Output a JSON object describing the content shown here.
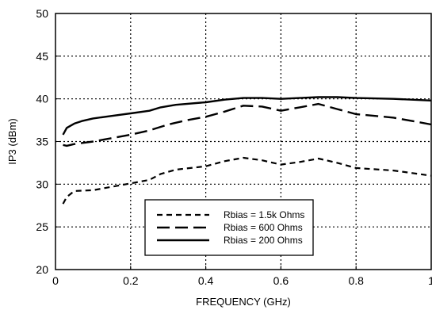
{
  "chart_data": {
    "type": "line",
    "xlabel": "FREQUENCY (GHz)",
    "ylabel": "IP3  (dBm)",
    "xlim": [
      0,
      1
    ],
    "ylim": [
      20,
      50
    ],
    "xticks": [
      0,
      0.2,
      0.4,
      0.6,
      0.8,
      1
    ],
    "xtick_labels": [
      "0",
      "0.2",
      "0.4",
      "0.6",
      "0.8",
      "1"
    ],
    "yticks": [
      20,
      25,
      30,
      35,
      40,
      45,
      50
    ],
    "ytick_labels": [
      "20",
      "25",
      "30",
      "35",
      "40",
      "45",
      "50"
    ],
    "grid": true,
    "legend_position": "bottom-center",
    "series": [
      {
        "name": "Rbias = 1.5k Ohms",
        "style": "short-dash",
        "x": [
          0.02,
          0.03,
          0.05,
          0.1,
          0.15,
          0.2,
          0.25,
          0.28,
          0.32,
          0.4,
          0.45,
          0.5,
          0.55,
          0.6,
          0.65,
          0.7,
          0.75,
          0.8,
          0.9,
          1.0
        ],
        "y": [
          27.7,
          28.5,
          29.2,
          29.3,
          29.7,
          30.1,
          30.5,
          31.2,
          31.7,
          32.1,
          32.7,
          33.1,
          32.8,
          32.3,
          32.6,
          33.0,
          32.5,
          31.9,
          31.6,
          31.0
        ]
      },
      {
        "name": "Rbias = 600 Ohms",
        "style": "long-dash",
        "x": [
          0.02,
          0.03,
          0.05,
          0.1,
          0.15,
          0.2,
          0.25,
          0.3,
          0.35,
          0.4,
          0.45,
          0.5,
          0.55,
          0.6,
          0.65,
          0.7,
          0.75,
          0.8,
          0.9,
          1.0
        ],
        "y": [
          34.6,
          34.5,
          34.7,
          35.0,
          35.4,
          35.8,
          36.3,
          37.0,
          37.5,
          37.9,
          38.5,
          39.2,
          39.1,
          38.6,
          39.0,
          39.4,
          38.8,
          38.2,
          37.8,
          37.0
        ]
      },
      {
        "name": "Rbias = 200 Ohms",
        "style": "solid",
        "x": [
          0.02,
          0.03,
          0.05,
          0.07,
          0.1,
          0.15,
          0.2,
          0.25,
          0.28,
          0.32,
          0.4,
          0.45,
          0.5,
          0.55,
          0.6,
          0.65,
          0.7,
          0.75,
          0.8,
          0.9,
          1.0
        ],
        "y": [
          35.8,
          36.6,
          37.1,
          37.4,
          37.7,
          38.0,
          38.3,
          38.6,
          39.0,
          39.3,
          39.6,
          39.9,
          40.1,
          40.1,
          40.0,
          40.1,
          40.2,
          40.2,
          40.1,
          40.0,
          39.8
        ]
      }
    ]
  }
}
